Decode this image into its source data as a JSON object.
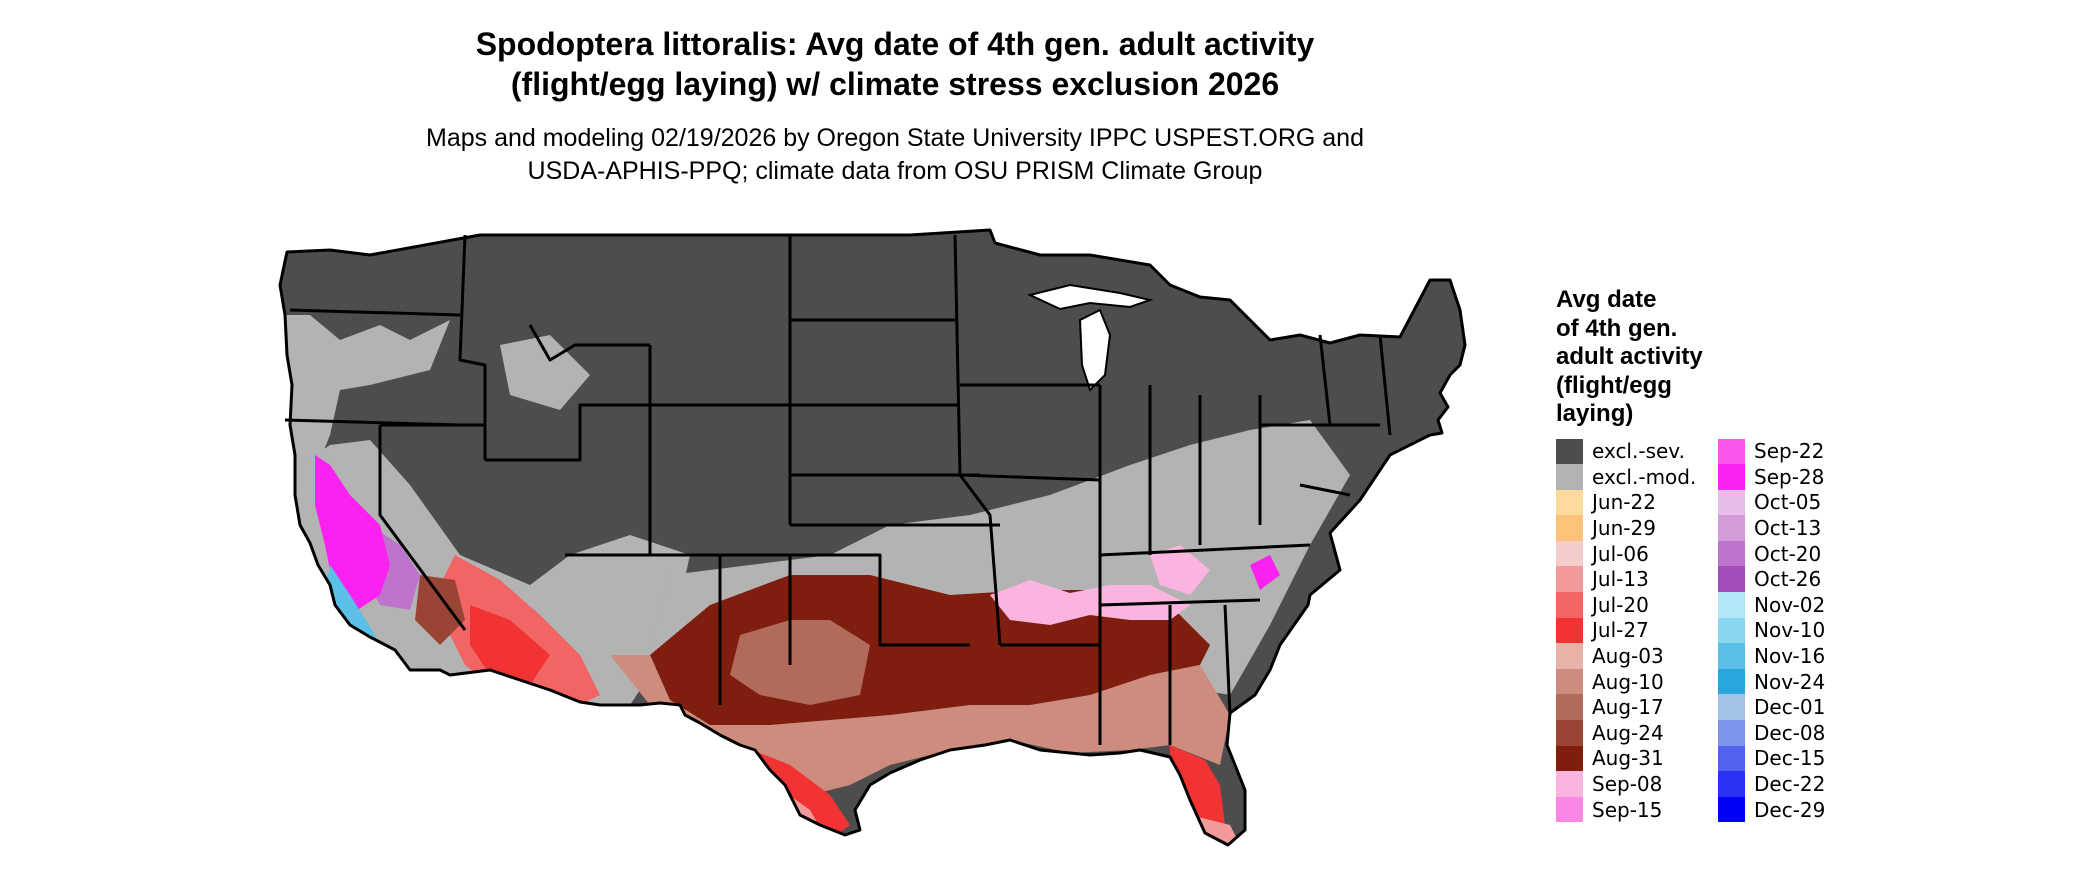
{
  "header": {
    "title_line1": "Spodoptera littoralis: Avg date of 4th gen. adult activity",
    "title_line2": "(flight/egg laying) w/ climate stress exclusion 2026",
    "subtitle_line1": "Maps and modeling 02/19/2026 by Oregon State University IPPC USPEST.ORG and",
    "subtitle_line2": "USDA-APHIS-PPQ; climate data from OSU PRISM Climate Group"
  },
  "legend": {
    "title_lines": [
      "Avg date",
      "of 4th gen.",
      "adult activity",
      "(flight/egg",
      "laying)"
    ],
    "items": [
      {
        "label": "excl.-sev.",
        "color": "#4d4d4d"
      },
      {
        "label": "excl.-mod.",
        "color": "#b3b3b3"
      },
      {
        "label": "Jun-22",
        "color": "#fdd99b"
      },
      {
        "label": "Jun-29",
        "color": "#fcc27a"
      },
      {
        "label": "Jul-06",
        "color": "#f3cccc"
      },
      {
        "label": "Jul-13",
        "color": "#f29a9a"
      },
      {
        "label": "Jul-20",
        "color": "#f26565"
      },
      {
        "label": "Jul-27",
        "color": "#f23333"
      },
      {
        "label": "Aug-03",
        "color": "#e7b3a8"
      },
      {
        "label": "Aug-10",
        "color": "#cd8c7d"
      },
      {
        "label": "Aug-17",
        "color": "#b26b5b"
      },
      {
        "label": "Aug-24",
        "color": "#9a4435"
      },
      {
        "label": "Aug-31",
        "color": "#7f1d0f"
      },
      {
        "label": "Sep-08",
        "color": "#fbb3df"
      },
      {
        "label": "Sep-15",
        "color": "#fb87e5"
      },
      {
        "label": "Sep-22",
        "color": "#fb55e9"
      },
      {
        "label": "Sep-28",
        "color": "#fb22f1"
      },
      {
        "label": "Oct-05",
        "color": "#e6bde7"
      },
      {
        "label": "Oct-13",
        "color": "#d39bd9"
      },
      {
        "label": "Oct-20",
        "color": "#bf74cc"
      },
      {
        "label": "Oct-26",
        "color": "#a24bb9"
      },
      {
        "label": "Nov-02",
        "color": "#b2e8f8"
      },
      {
        "label": "Nov-10",
        "color": "#88d5f0"
      },
      {
        "label": "Nov-16",
        "color": "#5cbfe8"
      },
      {
        "label": "Nov-24",
        "color": "#2aa6df"
      },
      {
        "label": "Dec-01",
        "color": "#a2c2e6"
      },
      {
        "label": "Dec-08",
        "color": "#7b96e9"
      },
      {
        "label": "Dec-15",
        "color": "#5264ee"
      },
      {
        "label": "Dec-22",
        "color": "#2a33f4"
      },
      {
        "label": "Dec-29",
        "color": "#0000f8"
      }
    ]
  }
}
